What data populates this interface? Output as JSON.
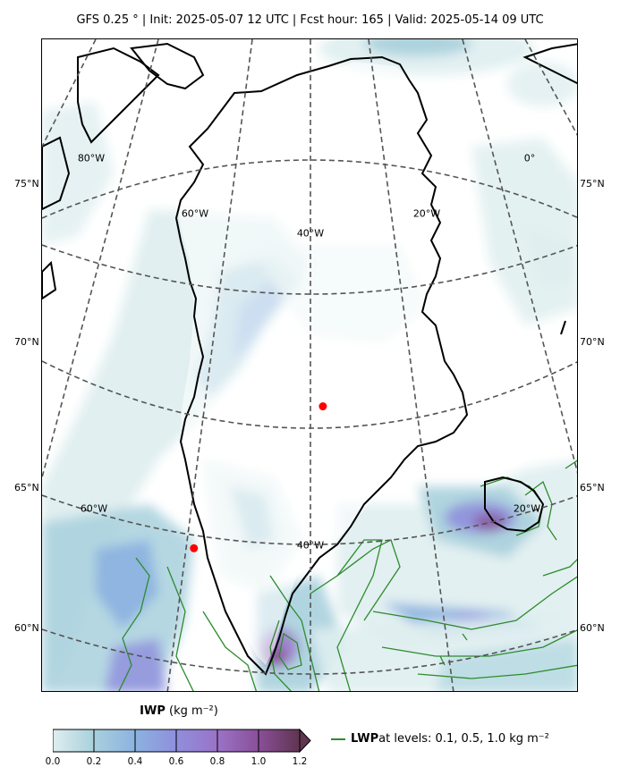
{
  "header": {
    "title": "GFS 0.25$^\\circ$  |  Init: 2025-05-07 12 UTC  |  Fcst hour: 165  |  Valid: 2025-05-14 09 UTC",
    "title_display": "GFS 0.25 ° | Init: 2025-05-07 12 UTC | Fcst hour: 165 | Valid: 2025-05-14 09 UTC"
  },
  "map": {
    "region": "Greenland",
    "projection": "polar stereographic",
    "lat_labels_left": [
      "75°N",
      "70°N",
      "65°N",
      "60°N"
    ],
    "lat_labels_right": [
      "75°N",
      "70°N",
      "65°N",
      "60°N"
    ],
    "lon_labels": [
      "80°W",
      "60°W",
      "40°W",
      "20°W",
      "0°",
      "60°W",
      "40°W",
      "20°W"
    ],
    "markers": [
      {
        "name": "marker-central-greenland",
        "lat": 72.6,
        "lon": -38.5,
        "color": "#ff0000"
      },
      {
        "name": "marker-southwest-greenland",
        "lat": 67.0,
        "lon": -50.7,
        "color": "#ff0000"
      }
    ],
    "graticule_color": "#555555",
    "coastline_color": "#000000",
    "ice_color_low": "#dfeeee",
    "ice_color_high": "#7e3e6e",
    "lwp_contour_color": "#2e8b2e"
  },
  "colorbar": {
    "variable": "IWP",
    "unit": "(kg m$^{-2}$)",
    "unit_display": "(kg m⁻²)",
    "ticks": [
      "0.0",
      "0.2",
      "0.4",
      "0.6",
      "0.8",
      "1.0",
      "1.2"
    ],
    "range": [
      0.0,
      1.2
    ],
    "colors": [
      "#dfeeef",
      "#a8d0dd",
      "#8cb2e0",
      "#8f8fdc",
      "#9a73c7",
      "#8a4f99",
      "#5f3550"
    ],
    "extend": "max"
  },
  "legend": {
    "label_bold": "LWP",
    "label_rest": " at levels: 0.1, 0.5, 1.0  kg m$^{-2}$",
    "label_rest_display": " at levels: 0.1, 0.5, 1.0  kg m⁻²",
    "color": "#2e8b2e"
  }
}
